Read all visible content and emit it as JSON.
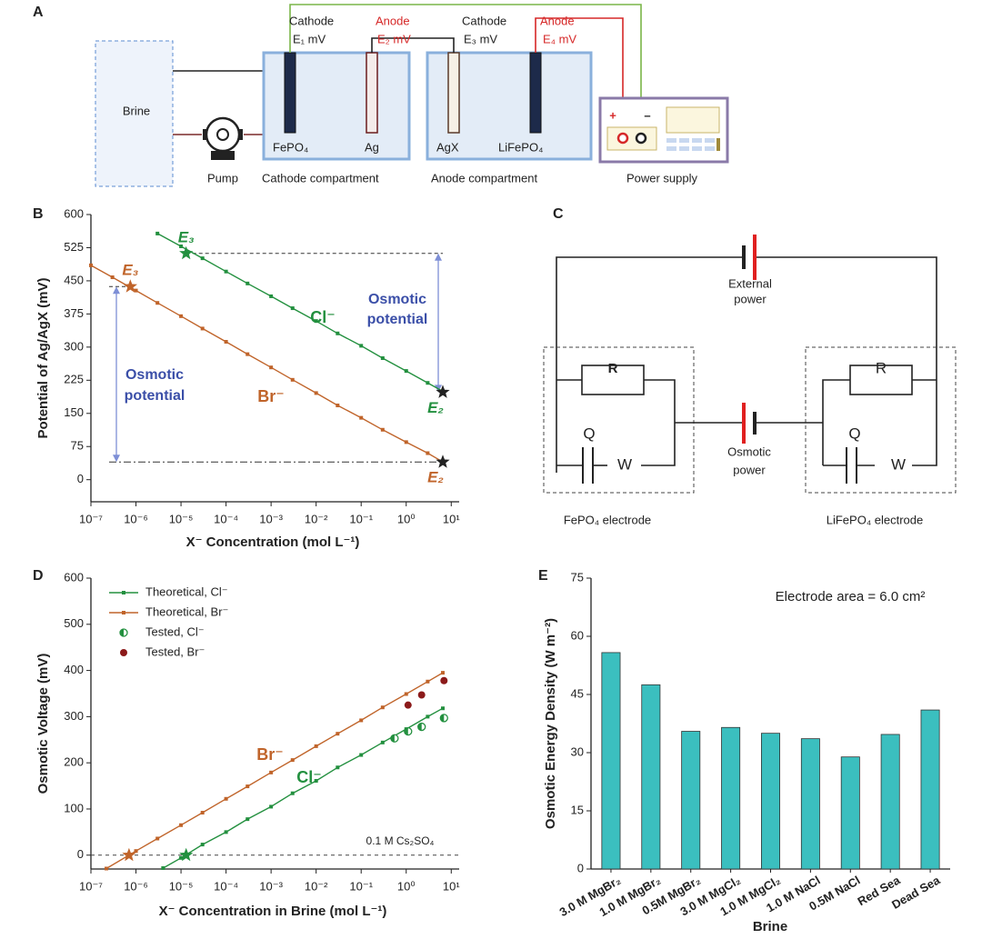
{
  "diagram_a": {
    "panel": "A",
    "brine": "Brine",
    "pump": "Pump",
    "terminals": [
      {
        "role": "Cathode",
        "potential": "E₁ mV"
      },
      {
        "role": "Anode",
        "potential": "E₂ mV"
      },
      {
        "role": "Cathode",
        "potential": "E₃ mV"
      },
      {
        "role": "Anode",
        "potential": "E₄ mV"
      }
    ],
    "electrodes": [
      "FePO₄",
      "Ag",
      "AgX",
      "LiFePO₄"
    ],
    "compartments": [
      "Cathode compartment",
      "Anode compartment"
    ],
    "power_supply": "Power supply",
    "polarity": [
      "+",
      "–"
    ]
  },
  "diagram_c": {
    "panel": "C",
    "external_power": [
      "External",
      "power"
    ],
    "osmotic_power": [
      "Osmotic",
      "power"
    ],
    "left": {
      "R": "R",
      "Q": "Q",
      "W": "W",
      "label": "FePO₄ electrode"
    },
    "right": {
      "R": "R",
      "Q": "Q",
      "W": "W",
      "label": "LiFePO₄ electrode"
    }
  },
  "chart_data": [
    {
      "panel": "B",
      "type": "line",
      "xscale": "log",
      "xlabel": "X⁻ Concentration (mol L⁻¹)",
      "ylabel": "Potential of Ag/AgX (mV)",
      "xlim": [
        1e-07,
        15
      ],
      "ylim": [
        -50,
        600
      ],
      "xticks": [
        {
          "value": 1e-07,
          "label": "10⁻⁷"
        },
        {
          "value": 1e-06,
          "label": "10⁻⁶"
        },
        {
          "value": 1e-05,
          "label": "10⁻⁵"
        },
        {
          "value": 0.0001,
          "label": "10⁻⁴"
        },
        {
          "value": 0.001,
          "label": "10⁻³"
        },
        {
          "value": 0.01,
          "label": "10⁻²"
        },
        {
          "value": 0.1,
          "label": "10⁻¹"
        },
        {
          "value": 1,
          "label": "10⁰"
        },
        {
          "value": 10,
          "label": "10¹"
        }
      ],
      "yticks": [
        0,
        75,
        150,
        225,
        300,
        375,
        450,
        525,
        600
      ],
      "series": [
        {
          "name": "Cl⁻",
          "color": "#23903f",
          "marker": "square",
          "line": true,
          "x": [
            3e-06,
            1e-05,
            3e-05,
            0.0001,
            0.0003,
            0.001,
            0.003,
            0.01,
            0.03,
            0.1,
            0.3,
            1,
            3,
            6.5
          ],
          "values": [
            557,
            528,
            501,
            471,
            444,
            415,
            388,
            359,
            331,
            303,
            275,
            246,
            219,
            200
          ]
        },
        {
          "name": "Br⁻",
          "color": "#c0642a",
          "marker": "square",
          "line": true,
          "x": [
            1e-07,
            3e-07,
            1e-06,
            3e-06,
            1e-05,
            3e-05,
            0.0001,
            0.0003,
            0.001,
            0.003,
            0.01,
            0.03,
            0.1,
            0.3,
            1,
            3,
            6.5
          ],
          "values": [
            485,
            458,
            428,
            400,
            370,
            342,
            312,
            284,
            254,
            226,
            196,
            168,
            140,
            113,
            85,
            60,
            40
          ]
        }
      ],
      "markers": [
        {
          "label": "E₃",
          "x": 1.3e-05,
          "value": 512,
          "color": "#23903f",
          "label_color": "#23903f"
        },
        {
          "label": "E₂",
          "x": 6.5,
          "value": 198,
          "color": "#222222",
          "label_color": "#23903f"
        },
        {
          "label": "E₃",
          "x": 7.5e-07,
          "value": 437,
          "color": "#c0642a",
          "label_color": "#c0642a"
        },
        {
          "label": "E₂",
          "x": 6.5,
          "value": 40,
          "color": "#222222",
          "label_color": "#c0642a"
        }
      ],
      "annotations": [
        [
          "Osmotic",
          "potential"
        ],
        [
          "Osmotic",
          "potential"
        ]
      ]
    },
    {
      "panel": "D",
      "type": "line",
      "xscale": "log",
      "xlabel": "X⁻ Concentration in Brine (mol L⁻¹)",
      "ylabel": "Osmotic Voltage (mV)",
      "xlim": [
        1e-07,
        15
      ],
      "ylim": [
        -30,
        600
      ],
      "xticks": [
        {
          "value": 1e-07,
          "label": "10⁻⁷"
        },
        {
          "value": 1e-06,
          "label": "10⁻⁶"
        },
        {
          "value": 1e-05,
          "label": "10⁻⁵"
        },
        {
          "value": 0.0001,
          "label": "10⁻⁴"
        },
        {
          "value": 0.001,
          "label": "10⁻³"
        },
        {
          "value": 0.01,
          "label": "10⁻²"
        },
        {
          "value": 0.1,
          "label": "10⁻¹"
        },
        {
          "value": 1,
          "label": "10⁰"
        },
        {
          "value": 10,
          "label": "10¹"
        }
      ],
      "yticks": [
        0,
        100,
        200,
        300,
        400,
        500,
        600
      ],
      "legend": "upper left",
      "hline": 0,
      "series": [
        {
          "name": "Theoretical, Cl⁻",
          "color": "#23903f",
          "marker": "square",
          "line": true,
          "x": [
            4e-06,
            1e-05,
            3e-05,
            0.0001,
            0.0003,
            0.001,
            0.003,
            0.01,
            0.03,
            0.1,
            0.3,
            1,
            3,
            6.5
          ],
          "values": [
            -28,
            -6,
            23,
            50,
            78,
            105,
            134,
            161,
            190,
            217,
            244,
            273,
            300,
            318
          ]
        },
        {
          "name": "Theoretical, Br⁻",
          "color": "#c0642a",
          "marker": "square",
          "line": true,
          "x": [
            2.2e-07,
            1e-06,
            3e-06,
            1e-05,
            3e-05,
            0.0001,
            0.0003,
            0.001,
            0.003,
            0.01,
            0.03,
            0.1,
            0.3,
            1,
            3,
            6.5
          ],
          "values": [
            -29,
            9,
            36,
            65,
            92,
            122,
            149,
            179,
            206,
            236,
            263,
            292,
            320,
            349,
            376,
            395
          ]
        },
        {
          "name": "Tested, Cl⁻",
          "color": "#23903f",
          "marker": "half-circle",
          "line": false,
          "x": [
            0.55,
            1.1,
            2.2,
            6.9
          ],
          "values": [
            253,
            268,
            278,
            297
          ]
        },
        {
          "name": "Tested, Br⁻",
          "color": "#8b1a1a",
          "marker": "circle",
          "line": false,
          "x": [
            1.1,
            2.2,
            6.9
          ],
          "values": [
            325,
            347,
            378
          ]
        }
      ],
      "markers": [
        {
          "x": 1.3e-05,
          "value": 0,
          "color": "#23903f"
        },
        {
          "x": 7e-07,
          "value": 0,
          "color": "#c0642a"
        }
      ],
      "annotations": [
        [
          "Br⁻"
        ],
        [
          "Cl⁻"
        ],
        [
          "0.1 M Cs₂SO₄"
        ]
      ]
    },
    {
      "panel": "E",
      "type": "bar",
      "title": "Electrode area = 6.0 cm²",
      "xlabel": "Brine",
      "ylabel": "Osmotic Energy Density (W m⁻²)",
      "categories": [
        "3.0 M MgBr₂",
        "1.0 M MgBr₂",
        "0.5M MgBr₂",
        "3.0 M MgCl₂",
        "1.0 M MgCl₂",
        "1.0 M NaCl",
        "0.5M NaCl",
        "Red Sea",
        "Dead Sea"
      ],
      "values": [
        55.8,
        47.5,
        35.5,
        36.5,
        35,
        33.6,
        28.9,
        34.7,
        41
      ],
      "color": "#3bbfbf",
      "ylim": [
        0,
        75
      ],
      "yticks": [
        0,
        15,
        30,
        45,
        60,
        75
      ]
    }
  ]
}
